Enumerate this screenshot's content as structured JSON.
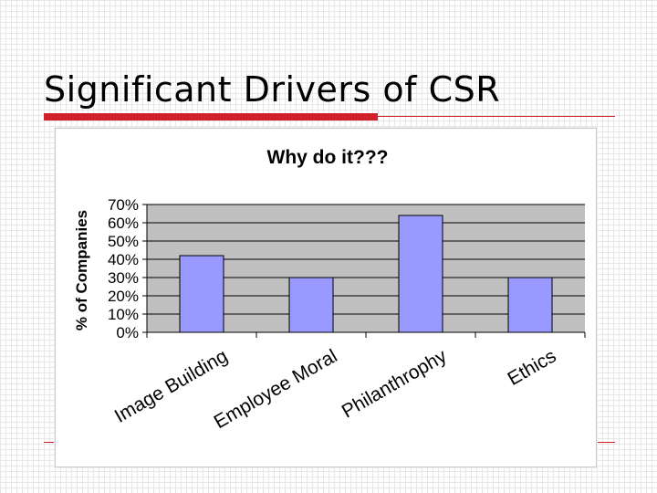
{
  "slide": {
    "title": "Significant Drivers of CSR",
    "accent_color": "#d0202a"
  },
  "chart_data": {
    "type": "bar",
    "title": "Why do it???",
    "xlabel": "",
    "ylabel": "%  of Companies",
    "categories": [
      "Image Building",
      "Employee Moral",
      "Philanthrophy",
      "Ethics"
    ],
    "values": [
      42,
      30,
      64,
      30
    ],
    "ylim": [
      0,
      70
    ],
    "y_ticks": [
      "0%",
      "10%",
      "20%",
      "30%",
      "40%",
      "50%",
      "60%",
      "70%"
    ],
    "grid": true,
    "legend": "none",
    "bar_color": "#9999ff",
    "plot_background": "#c0c0c0"
  }
}
